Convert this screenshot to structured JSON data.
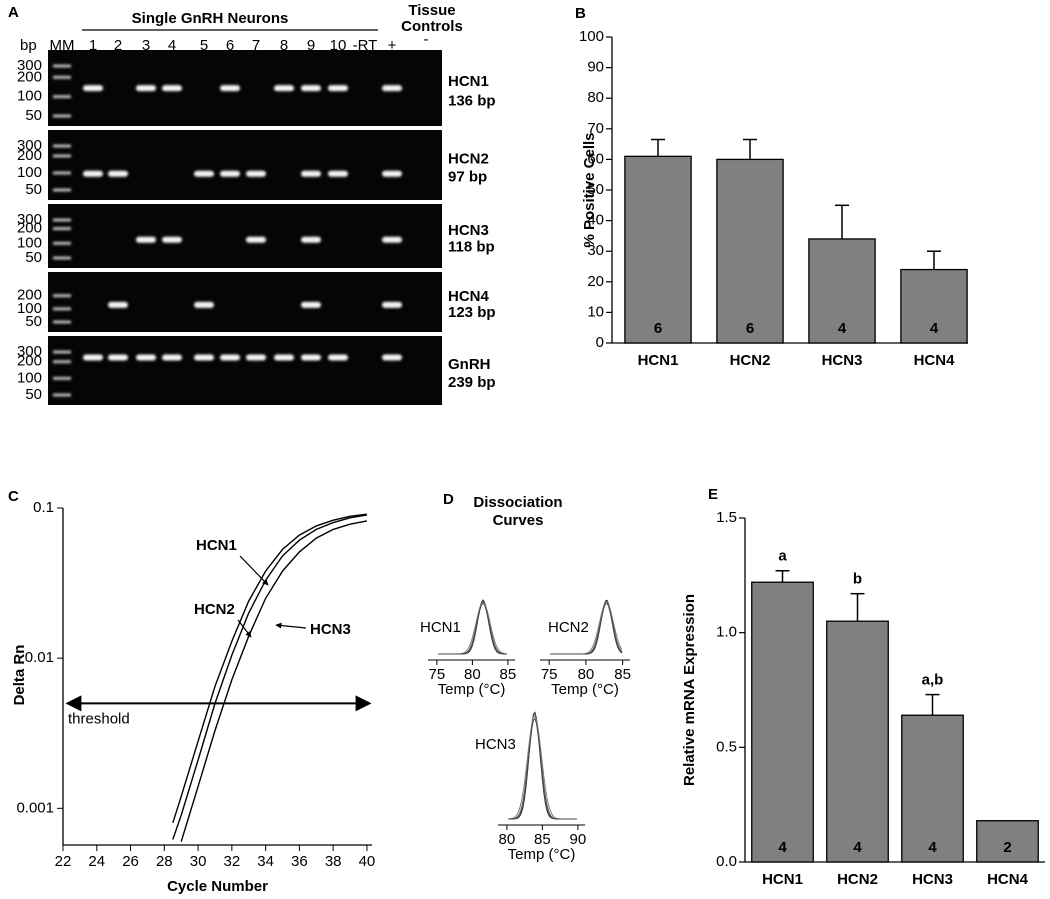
{
  "gel": {
    "label": "A",
    "group_title": "Single GnRH Neurons",
    "controls_title": [
      "Tissue",
      "Controls"
    ],
    "size_unit": "bp",
    "marker_lane": "MM",
    "lanes": [
      "1",
      "2",
      "3",
      "4",
      "5",
      "6",
      "7",
      "8",
      "9",
      "10",
      "-RT",
      "+",
      "-"
    ],
    "rows": [
      {
        "gene": "HCN1",
        "size": "136 bp",
        "markers": [
          300,
          200,
          100,
          50
        ],
        "bands": [
          true,
          false,
          true,
          true,
          false,
          true,
          false,
          true,
          true,
          true,
          false,
          true,
          false
        ]
      },
      {
        "gene": "HCN2",
        "size": "97 bp",
        "markers": [
          300,
          200,
          100,
          50
        ],
        "bands": [
          true,
          true,
          false,
          false,
          true,
          true,
          true,
          false,
          true,
          true,
          false,
          true,
          false
        ]
      },
      {
        "gene": "HCN3",
        "size": "118 bp",
        "markers": [
          300,
          200,
          100,
          50
        ],
        "bands": [
          false,
          false,
          true,
          true,
          false,
          false,
          true,
          false,
          true,
          false,
          false,
          true,
          false
        ]
      },
      {
        "gene": "HCN4",
        "size": "123 bp",
        "markers": [
          200,
          100,
          50
        ],
        "bands": [
          false,
          true,
          false,
          false,
          true,
          false,
          false,
          false,
          true,
          false,
          false,
          true,
          false
        ]
      },
      {
        "gene": "GnRH",
        "size": "239 bp",
        "markers": [
          300,
          200,
          100,
          50
        ],
        "bands": [
          true,
          true,
          true,
          true,
          true,
          true,
          true,
          true,
          true,
          true,
          false,
          true,
          false
        ]
      }
    ]
  },
  "chart_data": [
    {
      "type": "bar",
      "label": "B",
      "ylabel": "% Positive Cells",
      "categories": [
        "HCN1",
        "HCN2",
        "HCN3",
        "HCN4"
      ],
      "values": [
        61,
        60,
        34,
        24
      ],
      "errors": [
        5.5,
        6.5,
        11,
        6
      ],
      "n": [
        6,
        6,
        4,
        4
      ],
      "color": "#808080",
      "ylim": [
        0,
        100
      ],
      "yticks": [
        0,
        10,
        20,
        30,
        40,
        50,
        60,
        70,
        80,
        90,
        100
      ]
    },
    {
      "type": "line",
      "label": "C",
      "ylabel": "Delta Rn",
      "xlabel": "Cycle Number",
      "ylog": true,
      "x": [
        28.5,
        29,
        30,
        31,
        32,
        33,
        34,
        35,
        36,
        37,
        38,
        39,
        40
      ],
      "series": [
        {
          "name": "HCN1",
          "color": "#000000",
          "values": [
            0.0008,
            0.0012,
            0.0028,
            0.0065,
            0.013,
            0.024,
            0.038,
            0.053,
            0.066,
            0.076,
            0.083,
            0.088,
            0.091
          ]
        },
        {
          "name": "HCN2",
          "color": "#000000",
          "values": [
            0.00062,
            0.0009,
            0.0021,
            0.005,
            0.0105,
            0.02,
            0.033,
            0.048,
            0.061,
            0.072,
            0.08,
            0.086,
            0.09
          ]
        },
        {
          "name": "HCN3",
          "color": "#000000",
          "values": [
            null,
            0.0006,
            0.0014,
            0.0033,
            0.0072,
            0.014,
            0.025,
            0.038,
            0.051,
            0.063,
            0.072,
            0.078,
            0.082
          ]
        }
      ],
      "threshold": {
        "label": "threshold",
        "value": 0.005
      },
      "xlim": [
        22,
        40.3
      ],
      "xticks": [
        22,
        24,
        26,
        28,
        30,
        32,
        34,
        36,
        38,
        40
      ],
      "ylim": [
        0.00057,
        0.1
      ],
      "yticks": [
        0.1,
        0.01,
        0.001
      ]
    },
    {
      "type": "bar",
      "label": "E",
      "ylabel": "Relative mRNA Expression",
      "categories": [
        "HCN1",
        "HCN2",
        "HCN3",
        "HCN4"
      ],
      "values": [
        1.22,
        1.05,
        0.64,
        0.18
      ],
      "errors": [
        0.05,
        0.12,
        0.09,
        null
      ],
      "n": [
        4,
        4,
        4,
        2
      ],
      "letters": [
        "a",
        "b",
        "a,b",
        null
      ],
      "color": "#808080",
      "ylim": [
        0,
        1.5
      ],
      "yticks": [
        {
          "value": 0,
          "label": "0.0"
        },
        0.5,
        {
          "value": 1,
          "label": "1.0"
        },
        1.5
      ]
    }
  ],
  "dissociation": {
    "label": "D",
    "title": [
      "Dissociation",
      "Curves"
    ],
    "xlabel": "Temp (°C)",
    "plots": [
      {
        "name": "HCN1",
        "xlim": [
          73.75,
          86
        ],
        "xticks": [
          75,
          80,
          85
        ],
        "peak": 81.5
      },
      {
        "name": "HCN2",
        "xlim": [
          73.75,
          86
        ],
        "xticks": [
          75,
          80,
          85
        ],
        "peak": 82.8
      },
      {
        "name": "HCN3",
        "xlim": [
          78.75,
          91
        ],
        "xticks": [
          80,
          85,
          90
        ],
        "peak": 83.9
      }
    ]
  }
}
